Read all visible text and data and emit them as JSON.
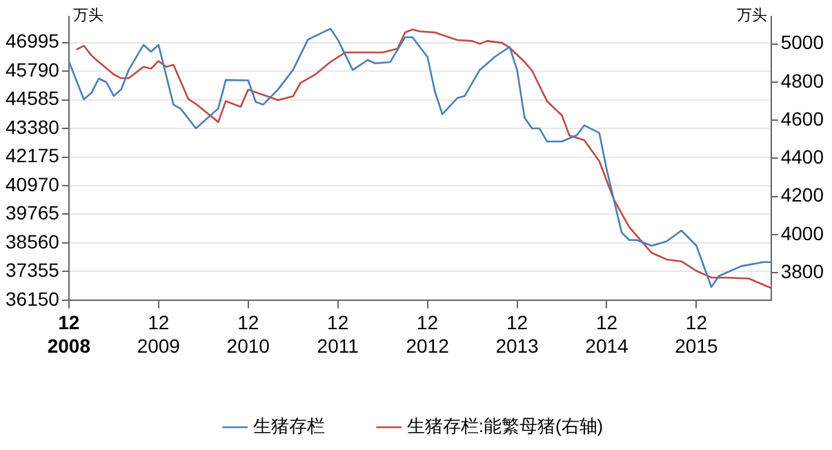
{
  "chart_data": {
    "type": "line",
    "ylabel": "万头",
    "y2label": "万头",
    "xlim": [
      "2008-12",
      "2016-10"
    ],
    "xticks": [
      {
        "value": "2008-12",
        "label": "12\n2008"
      },
      {
        "value": "2009-12",
        "label": "12\n2009"
      },
      {
        "value": "2010-12",
        "label": "12\n2010"
      },
      {
        "value": "2011-12",
        "label": "12\n2011"
      },
      {
        "value": "2012-12",
        "label": "12\n2012"
      },
      {
        "value": "2013-12",
        "label": "12\n2013"
      },
      {
        "value": "2014-12",
        "label": "12\n2014"
      },
      {
        "value": "2015-12",
        "label": "12\n2015"
      }
    ],
    "ylim": [
      36150,
      48090
    ],
    "yticks": [
      36150,
      37355,
      38560,
      39765,
      40970,
      42175,
      43380,
      44585,
      45790,
      46995
    ],
    "y2lim": [
      3657,
      5143
    ],
    "y2ticks": [
      3800,
      4000,
      4200,
      4400,
      4600,
      4800,
      5000
    ],
    "grid": "y",
    "legend": "bottom",
    "marker": "none",
    "line_style": "solid",
    "series": [
      {
        "name": "生猪存栏",
        "color": "#4a7ebb",
        "x": [
          "2008-12",
          "2009-02",
          "2009-03",
          "2009-04",
          "2009-05",
          "2009-06",
          "2009-07",
          "2009-08",
          "2009-10",
          "2009-11",
          "2009-12",
          "2010-02",
          "2010-03",
          "2010-05",
          "2010-08",
          "2010-09",
          "2010-12",
          "2011-01",
          "2011-02",
          "2011-04",
          "2011-06",
          "2011-08",
          "2011-11",
          "2011-12",
          "2012-02",
          "2012-04",
          "2012-05",
          "2012-07",
          "2012-09",
          "2012-10",
          "2012-12",
          "2013-01",
          "2013-02",
          "2013-04",
          "2013-05",
          "2013-07",
          "2013-09",
          "2013-11",
          "2013-12",
          "2014-01",
          "2014-02",
          "2014-03",
          "2014-04",
          "2014-06",
          "2014-08",
          "2014-09",
          "2014-11",
          "2014-12",
          "2015-02",
          "2015-03",
          "2015-04",
          "2015-06",
          "2015-08",
          "2015-10",
          "2015-12",
          "2016-02",
          "2016-03",
          "2016-06",
          "2016-09",
          "2016-10"
        ],
        "values": [
          46200,
          44600,
          44870,
          45480,
          45330,
          44750,
          45020,
          45840,
          46900,
          46610,
          46900,
          44380,
          44200,
          43380,
          44220,
          45420,
          45400,
          44500,
          44380,
          45020,
          45840,
          47120,
          47580,
          47120,
          45840,
          46260,
          46120,
          46170,
          47220,
          47220,
          46390,
          44930,
          43980,
          44660,
          44750,
          45840,
          46390,
          46810,
          45840,
          43830,
          43380,
          43380,
          42830,
          42830,
          43100,
          43510,
          43190,
          41640,
          38990,
          38680,
          38680,
          38440,
          38620,
          39080,
          38440,
          36700,
          37160,
          37580,
          37750,
          37750
        ]
      },
      {
        "name": "生猪存栏:能繁母猪(右轴)",
        "color": "#be4b48",
        "axis": "y2",
        "x": [
          "2009-01",
          "2009-02",
          "2009-03",
          "2009-04",
          "2009-06",
          "2009-07",
          "2009-08",
          "2009-10",
          "2009-11",
          "2009-12",
          "2010-01",
          "2010-02",
          "2010-04",
          "2010-05",
          "2010-08",
          "2010-09",
          "2010-11",
          "2010-12",
          "2011-04",
          "2011-06",
          "2011-07",
          "2011-09",
          "2011-11",
          "2012-01",
          "2012-06",
          "2012-08",
          "2012-09",
          "2012-10",
          "2012-11",
          "2013-01",
          "2013-04",
          "2013-06",
          "2013-07",
          "2013-08",
          "2013-10",
          "2013-11",
          "2014-01",
          "2014-02",
          "2014-03",
          "2014-04",
          "2014-06",
          "2014-07",
          "2014-09",
          "2014-11",
          "2015-01",
          "2015-03",
          "2015-05",
          "2015-06",
          "2015-08",
          "2015-10",
          "2015-12",
          "2016-02",
          "2016-04",
          "2016-07",
          "2016-10"
        ],
        "values": [
          4970,
          4990,
          4940,
          4905,
          4840,
          4820,
          4820,
          4880,
          4870,
          4910,
          4880,
          4890,
          4710,
          4685,
          4590,
          4700,
          4670,
          4760,
          4705,
          4725,
          4795,
          4840,
          4905,
          4955,
          4955,
          4975,
          5060,
          5075,
          5065,
          5060,
          5020,
          5015,
          5000,
          5015,
          5005,
          4980,
          4905,
          4860,
          4780,
          4700,
          4625,
          4520,
          4495,
          4385,
          4180,
          4040,
          3950,
          3905,
          3870,
          3860,
          3810,
          3775,
          3775,
          3770,
          3720
        ]
      }
    ]
  }
}
